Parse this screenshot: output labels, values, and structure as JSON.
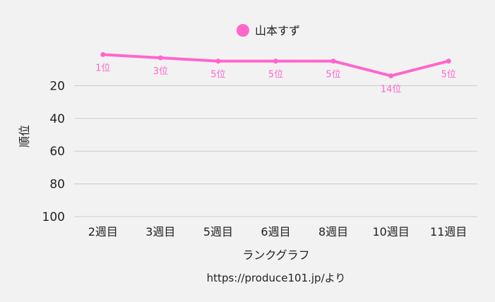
{
  "chart_data": {
    "type": "line",
    "categories": [
      "2週目",
      "3週目",
      "5週目",
      "6週目",
      "8週目",
      "10週目",
      "11週目"
    ],
    "series": [
      {
        "name": "山本すず",
        "values": [
          1,
          3,
          5,
          5,
          5,
          14,
          5
        ],
        "data_labels": [
          "1位",
          "3位",
          "5位",
          "5位",
          "5位",
          "14位",
          "5位"
        ],
        "color": "#ff66cc"
      }
    ],
    "xlabel": "ランクグラフ",
    "ylabel": "順位",
    "yticks": [
      20,
      40,
      60,
      80,
      100
    ],
    "ylim": [
      0,
      100
    ],
    "y_reversed": true,
    "grid": true,
    "legend_position": "top-center",
    "colors": {
      "background": "#f2f2f2",
      "grid": "#cccccc"
    }
  },
  "source_note": "https://produce101.jp/より"
}
